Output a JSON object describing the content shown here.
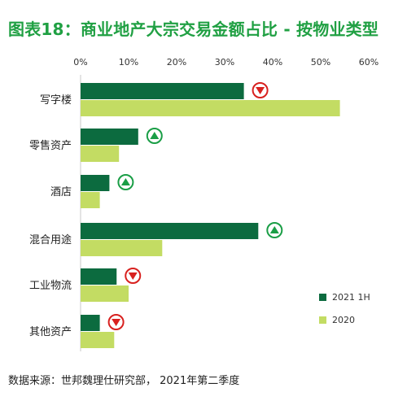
{
  "title": "图表18：商业地产大宗交易金额占比 - 按物业类型",
  "source": "数据来源：世邦魏理仕研究部， 2021年第二季度",
  "colors": {
    "series1": "#0c6b3f",
    "series2": "#c3dc63",
    "title": "#20a043",
    "up_marker": "#1a9e46",
    "down_marker": "#d8211f"
  },
  "chart_data": {
    "type": "bar",
    "orientation": "horizontal",
    "categories": [
      "写字楼",
      "零售资产",
      "酒店",
      "混合用途",
      "工业物流",
      "其他资产"
    ],
    "series": [
      {
        "name": "2021 1H",
        "values": [
          34,
          12,
          6,
          37,
          7.5,
          4
        ]
      },
      {
        "name": "2020",
        "values": [
          54,
          8,
          4,
          17,
          10,
          7
        ]
      }
    ],
    "xlim": [
      0,
      60
    ],
    "ticks": [
      "0%",
      "10%",
      "20%",
      "30%",
      "40%",
      "50%",
      "60%"
    ],
    "tick_values": [
      0,
      10,
      20,
      30,
      40,
      50,
      60
    ],
    "change_markers": [
      "down",
      "up",
      "up",
      "up",
      "down",
      "down"
    ],
    "legend_position": "bottom-right",
    "grid": false
  }
}
